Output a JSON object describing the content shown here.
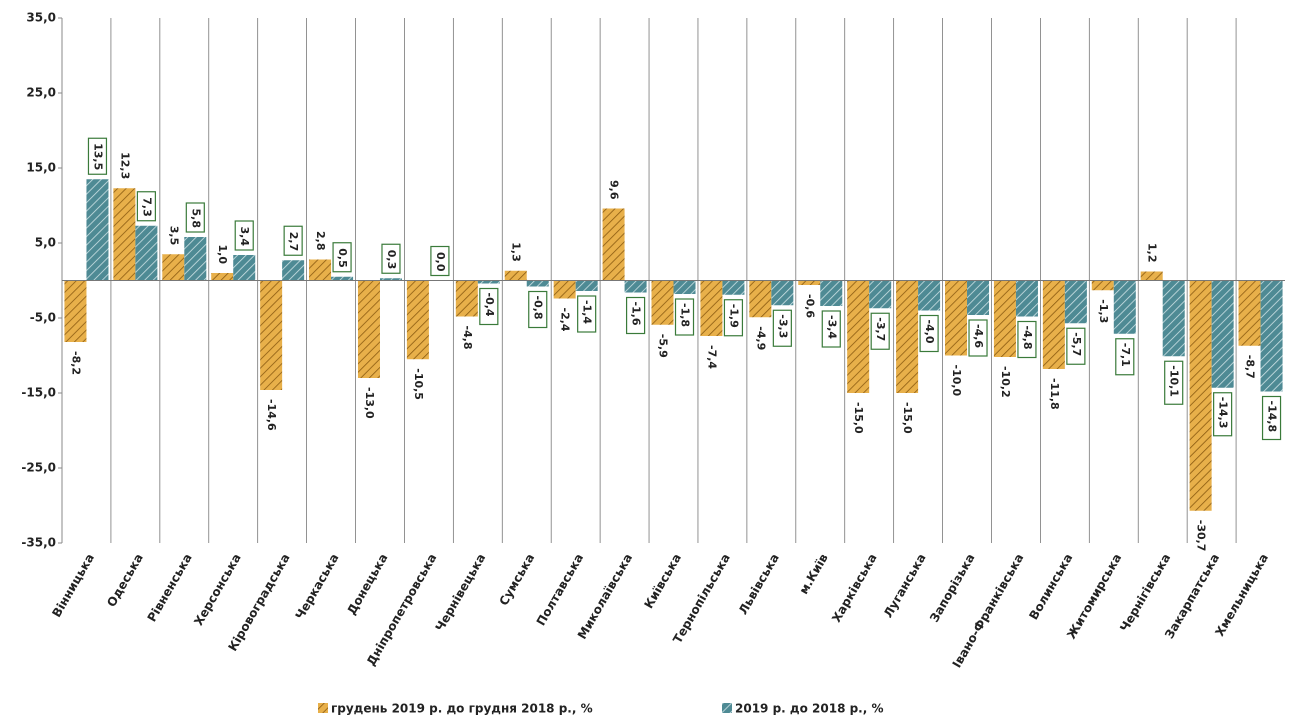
{
  "chart_data": {
    "type": "bar",
    "categories": [
      "Вінницька",
      "Одеська",
      "Рівненська",
      "Херсонська",
      "Кіровоградська",
      "Черкаська",
      "Донецька",
      "Дніпропетровська",
      "Чернівецька",
      "Сумська",
      "Полтавська",
      "Миколаївська",
      "Київська",
      "Тернопільська",
      "Львівська",
      "м.Київ",
      "Харківська",
      "Луганська",
      "Запорізька",
      "Івано-Франківська",
      "Волинська",
      "Житомирська",
      "Чернігівська",
      "Закарпатська",
      "Хмельницька"
    ],
    "series": [
      {
        "name": "грудень 2019 р. до грудня 2018 р., %",
        "color": "#e8b04a",
        "values": [
          -8.2,
          12.3,
          3.5,
          1.0,
          -14.6,
          2.8,
          -13.0,
          -10.5,
          -4.8,
          1.3,
          -2.4,
          9.6,
          -5.9,
          -7.4,
          -4.9,
          -0.6,
          -15.0,
          -15.0,
          -10.0,
          -10.2,
          -11.8,
          -1.3,
          1.2,
          -30.7,
          -8.7
        ],
        "value_labels": [
          "-8,2",
          "12,3",
          "3,5",
          "1,0",
          "-14,6",
          "2,8",
          "-13,0",
          "-10,5",
          "-4,8",
          "1,3",
          "-2,4",
          "9,6",
          "-5,9",
          "-7,4",
          "-4,9",
          "-0,6",
          "-15,0",
          "-15,0",
          "-10,0",
          "-10,2",
          "-11,8",
          "-1,3",
          "1,2",
          "-30,7",
          "-8,7"
        ]
      },
      {
        "name": "2019 р. до 2018 р., %",
        "color": "#4e8a94",
        "values": [
          13.5,
          7.3,
          5.8,
          3.4,
          2.7,
          0.5,
          0.3,
          0.0,
          -0.4,
          -0.8,
          -1.4,
          -1.6,
          -1.8,
          -1.9,
          -3.3,
          -3.4,
          -3.7,
          -4.0,
          -4.6,
          -4.8,
          -5.7,
          -7.1,
          -10.1,
          -14.3,
          -14.8
        ],
        "value_labels": [
          "13,5",
          "7,3",
          "5,8",
          "3,4",
          "2,7",
          "0,5",
          "0,3",
          "0,0",
          "-0,4",
          "-0,8",
          "-1,4",
          "-1,6",
          "-1,8",
          "-1,9",
          "-3,3",
          "-3,4",
          "-3,7",
          "-4,0",
          "-4,6",
          "-4,8",
          "-5,7",
          "-7,1",
          "-10,1",
          "-14,3",
          "-14,8"
        ]
      }
    ],
    "ylim": [
      -35,
      35
    ],
    "yticks": [
      {
        "value": 35,
        "label": "35,0"
      },
      {
        "value": 25,
        "label": "25,0"
      },
      {
        "value": 15,
        "label": "15,0"
      },
      {
        "value": 5,
        "label": "5,0"
      },
      {
        "value": -5,
        "label": "-5,0"
      },
      {
        "value": -15,
        "label": "-15,0"
      },
      {
        "value": -25,
        "label": "-25,0"
      },
      {
        "value": -35,
        "label": "-35,0"
      }
    ],
    "legend": "bottom"
  }
}
